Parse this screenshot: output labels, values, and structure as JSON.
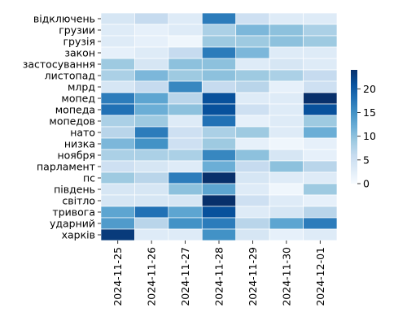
{
  "chart_data": {
    "type": "heatmap",
    "title": "",
    "xlabel": "",
    "ylabel": "",
    "x": [
      "2024-11-25",
      "2024-11-26",
      "2024-11-27",
      "2024-11-28",
      "2024-11-29",
      "2024-11-30",
      "2024-12-01"
    ],
    "y": [
      "відключень",
      "грузии",
      "грузія",
      "закон",
      "застосування",
      "листопад",
      "млрд",
      "мопед",
      "мопеда",
      "мопедов",
      "нато",
      "низка",
      "ноября",
      "парламент",
      "пс",
      "південь",
      "світло",
      "тривога",
      "ударний",
      "харків"
    ],
    "values": [
      [
        4,
        6,
        3,
        17,
        5,
        3,
        3
      ],
      [
        3,
        2,
        3,
        8,
        11,
        10,
        8
      ],
      [
        3,
        2,
        1,
        9,
        9,
        10,
        9
      ],
      [
        2,
        3,
        6,
        17,
        11,
        3,
        3
      ],
      [
        9,
        4,
        10,
        10,
        3,
        4,
        3
      ],
      [
        8,
        11,
        9,
        10,
        9,
        8,
        6
      ],
      [
        4,
        6,
        16,
        6,
        7,
        2,
        5
      ],
      [
        17,
        13,
        7,
        21,
        3,
        3,
        24
      ],
      [
        18,
        12,
        10,
        21,
        5,
        3,
        21
      ],
      [
        8,
        9,
        3,
        18,
        2,
        3,
        9
      ],
      [
        7,
        17,
        5,
        8,
        9,
        3,
        12
      ],
      [
        11,
        15,
        5,
        9,
        2,
        1,
        2
      ],
      [
        8,
        8,
        8,
        16,
        10,
        4,
        2
      ],
      [
        5,
        4,
        3,
        12,
        6,
        10,
        7
      ],
      [
        9,
        7,
        17,
        24,
        4,
        3,
        3
      ],
      [
        4,
        4,
        10,
        13,
        3,
        1,
        9
      ],
      [
        4,
        4,
        4,
        24,
        5,
        3,
        2
      ],
      [
        13,
        18,
        13,
        21,
        3,
        4,
        7
      ],
      [
        14,
        7,
        15,
        17,
        7,
        13,
        17
      ],
      [
        23,
        3,
        3,
        15,
        4,
        2,
        3
      ]
    ],
    "colorbar": {
      "ticks": [
        0,
        5,
        10,
        15,
        20
      ],
      "vmin": 0,
      "vmax": 24
    },
    "colormap": "Blues",
    "cell_border_color": "#ffffff"
  }
}
